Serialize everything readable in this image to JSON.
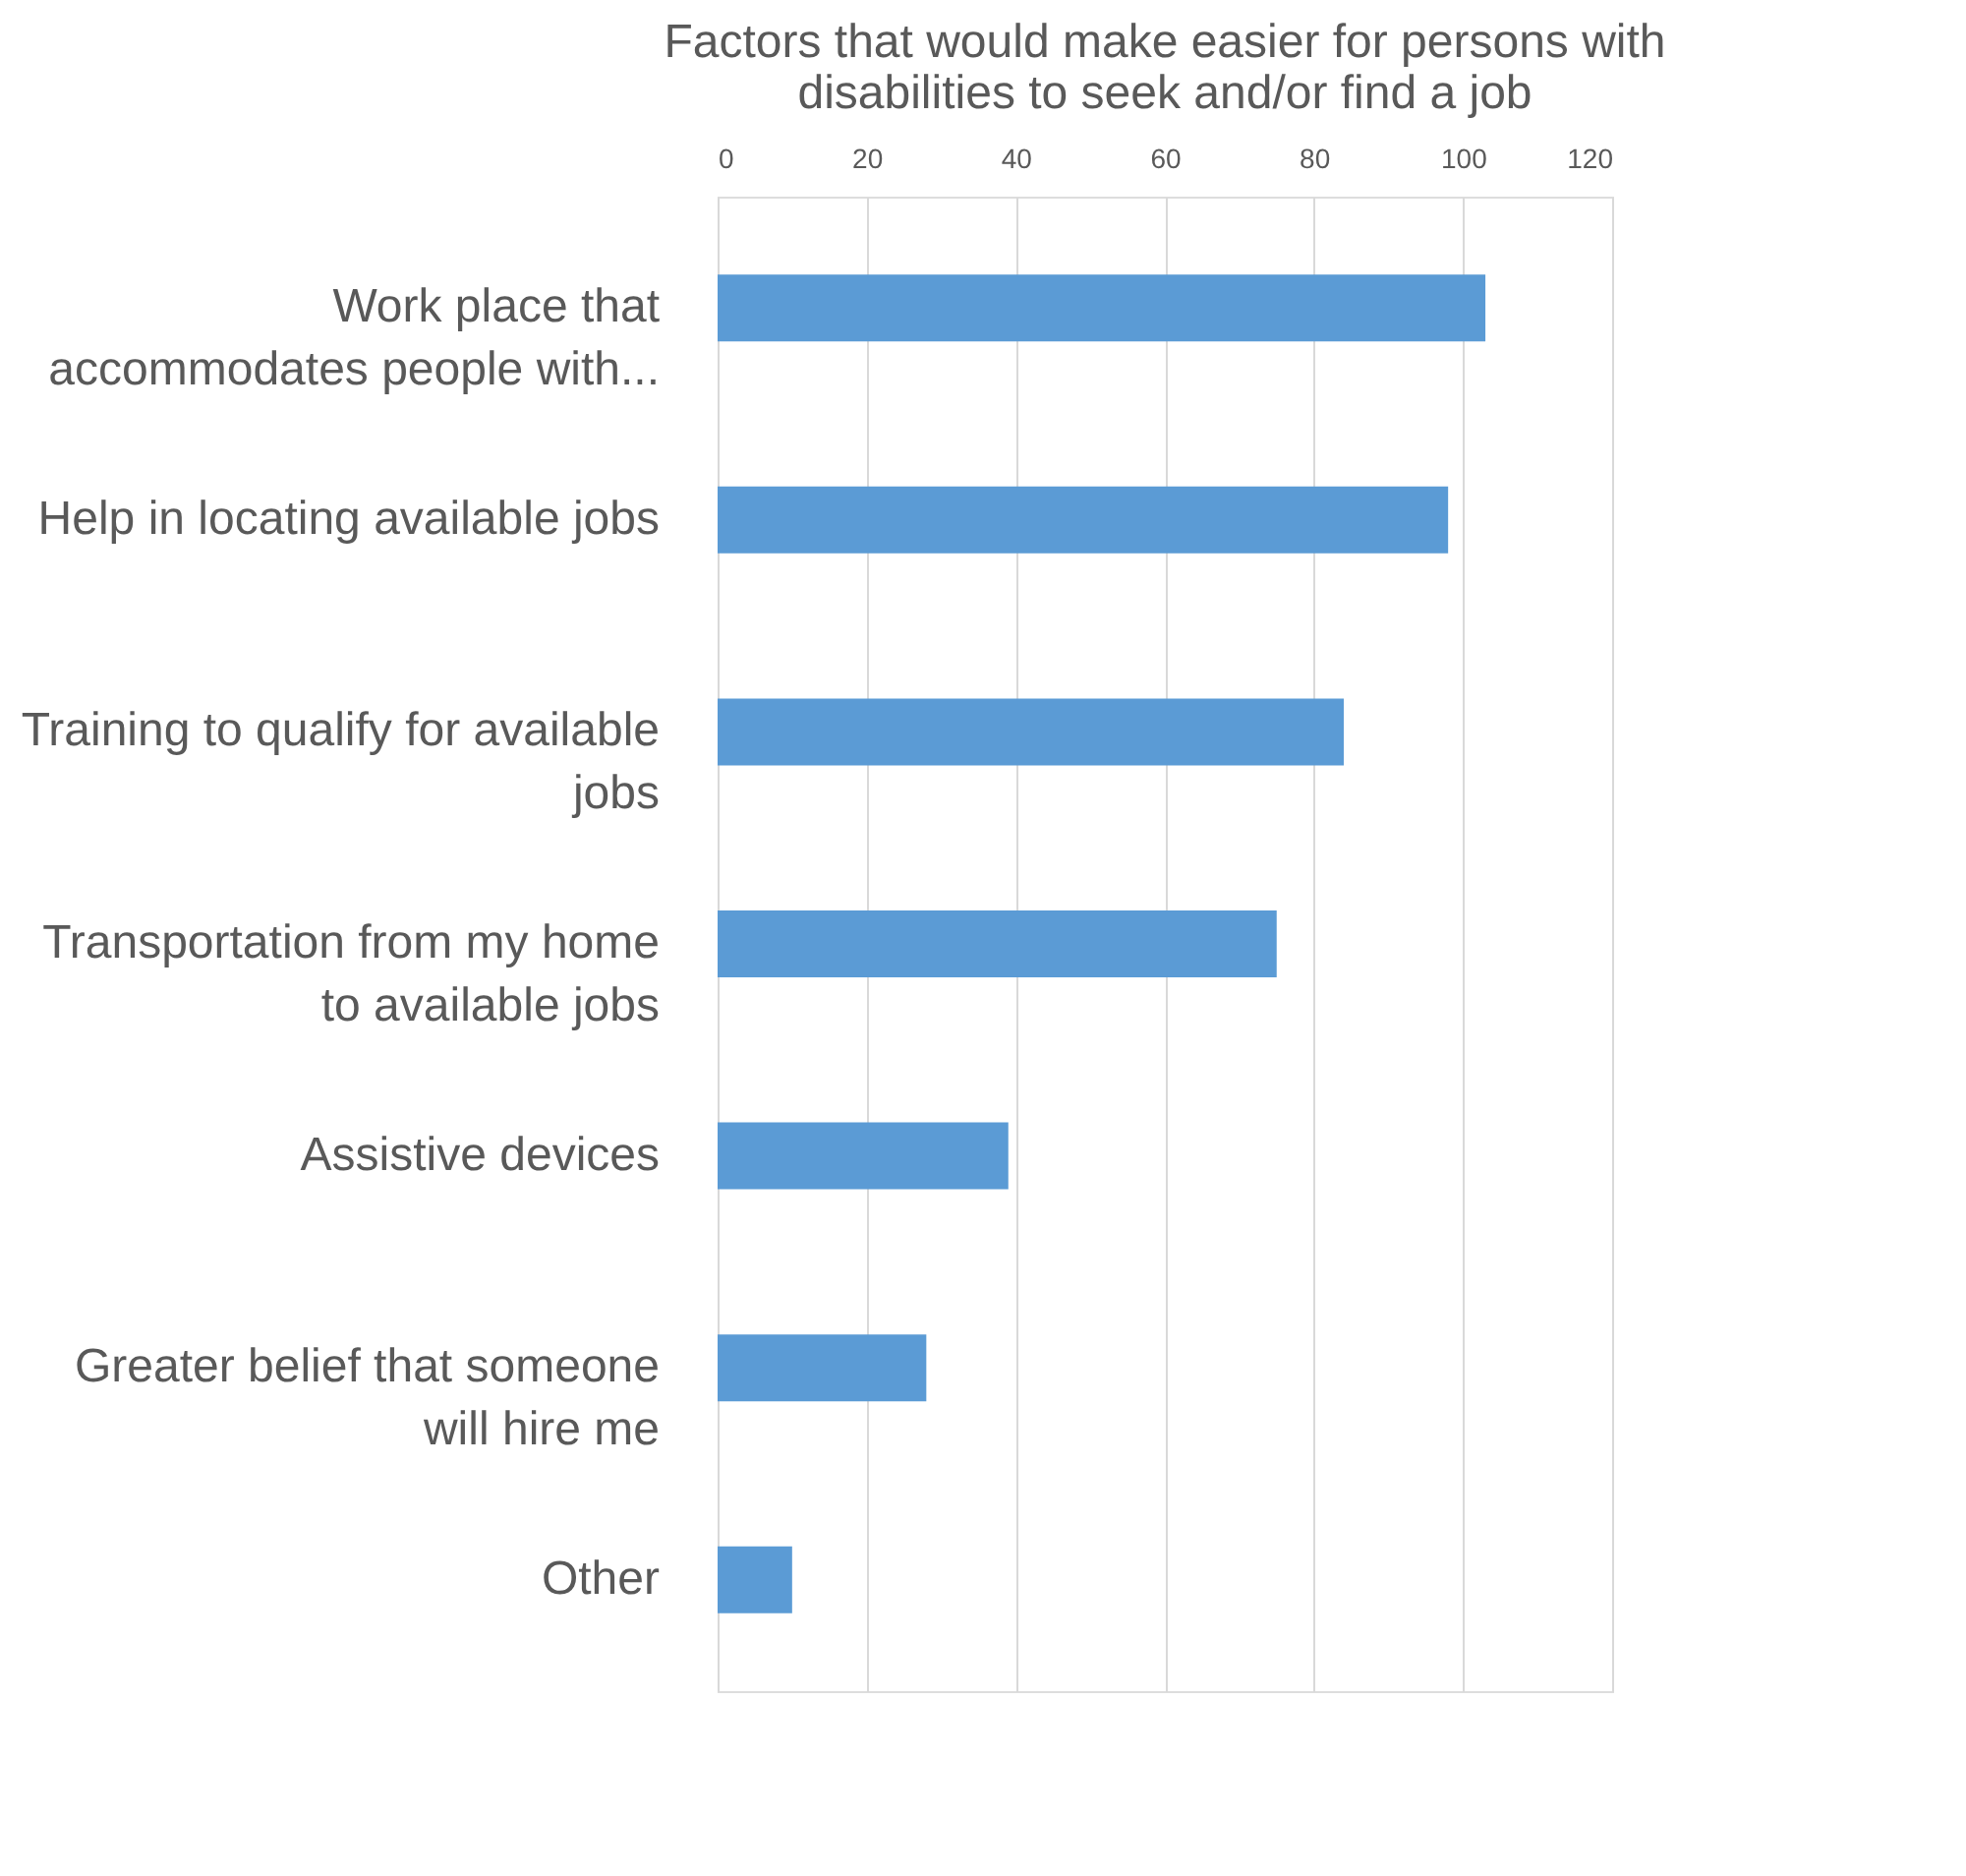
{
  "chart_data": {
    "type": "bar",
    "orientation": "horizontal",
    "title": "Factors that would make easier for persons with disabilities to seek and/or find a job",
    "categories": [
      "Work place that\naccommodates people with...",
      "Help in locating available jobs",
      "Training to qualify for available\njobs",
      "Transportation from my home\nto available jobs",
      "Assistive devices",
      "Greater belief that someone\nwill hire me",
      "Other"
    ],
    "values": [
      103,
      98,
      84,
      75,
      39,
      28,
      10
    ],
    "color": "#5b9bd5",
    "xlim": [
      0,
      120
    ],
    "xticks": [
      0,
      20,
      40,
      60,
      80,
      100,
      120
    ],
    "grid": "x"
  }
}
